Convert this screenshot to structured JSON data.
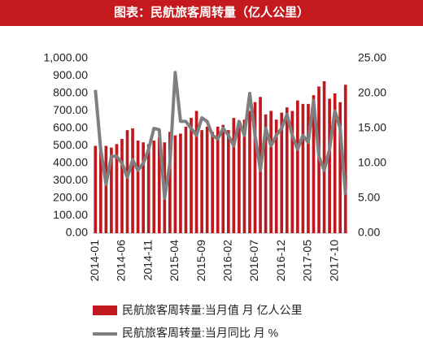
{
  "chart_data": {
    "type": "bar_line",
    "title": "图表：民航旅客周转量（亿人公里）",
    "categories": [
      "2014-01",
      null,
      null,
      null,
      null,
      "2014-06",
      null,
      null,
      null,
      null,
      "2014-11",
      null,
      null,
      null,
      null,
      "2015-04",
      null,
      null,
      null,
      null,
      "2015-09",
      null,
      null,
      null,
      null,
      "2016-02",
      null,
      null,
      null,
      null,
      "2016-07",
      null,
      null,
      null,
      null,
      "2016-12",
      null,
      null,
      null,
      null,
      "2017-05",
      null,
      null,
      null,
      null,
      "2017-10",
      null,
      null
    ],
    "series": [
      {
        "name": "民航旅客周转量:当月值 月 亿人公里",
        "color": "#c0181f",
        "values": [
          500,
          480,
          500,
          490,
          510,
          540,
          590,
          600,
          530,
          520,
          510,
          530,
          550,
          520,
          580,
          560,
          570,
          610,
          660,
          700,
          590,
          610,
          580,
          610,
          620,
          590,
          660,
          640,
          650,
          700,
          750,
          780,
          680,
          700,
          650,
          690,
          720,
          700,
          760,
          740,
          740,
          790,
          840,
          870,
          770,
          800,
          750,
          850
        ]
      },
      {
        "name": "民航旅客周转量:当月同比 月 %",
        "color": "#7f7f7f",
        "axis": "y2",
        "values": [
          20.5,
          12,
          7,
          11,
          11,
          10,
          8,
          10.5,
          9,
          10,
          12,
          15,
          14.8,
          5,
          10,
          23,
          16,
          16,
          15,
          14,
          16.5,
          16,
          14,
          13.5,
          15,
          14,
          12.5,
          16,
          14,
          20,
          14,
          9,
          15,
          12.5,
          14,
          15,
          17,
          14,
          12,
          14,
          13,
          19,
          11,
          9,
          12,
          17.5,
          15,
          5.5
        ]
      }
    ],
    "ylim": [
      0,
      1000
    ],
    "yticks": [
      {
        "value": 0,
        "label": "0.00"
      },
      {
        "value": 100,
        "label": "100.00"
      },
      {
        "value": 200,
        "label": "200.00"
      },
      {
        "value": 300,
        "label": "300.00"
      },
      {
        "value": 400,
        "label": "400.00"
      },
      {
        "value": 500,
        "label": "500.00"
      },
      {
        "value": 600,
        "label": "600.00"
      },
      {
        "value": 700,
        "label": "700.00"
      },
      {
        "value": 800,
        "label": "800.00"
      },
      {
        "value": 900,
        "label": "900.00"
      },
      {
        "value": 1000,
        "label": "1,000.00"
      }
    ],
    "y2lim": [
      0,
      25
    ],
    "y2ticks": [
      {
        "value": 0,
        "label": "0.00"
      },
      {
        "value": 5,
        "label": "5.00"
      },
      {
        "value": 10,
        "label": "10.00"
      },
      {
        "value": 15,
        "label": "15.00"
      },
      {
        "value": 20,
        "label": "20.00"
      },
      {
        "value": 25,
        "label": "25.00"
      }
    ]
  }
}
